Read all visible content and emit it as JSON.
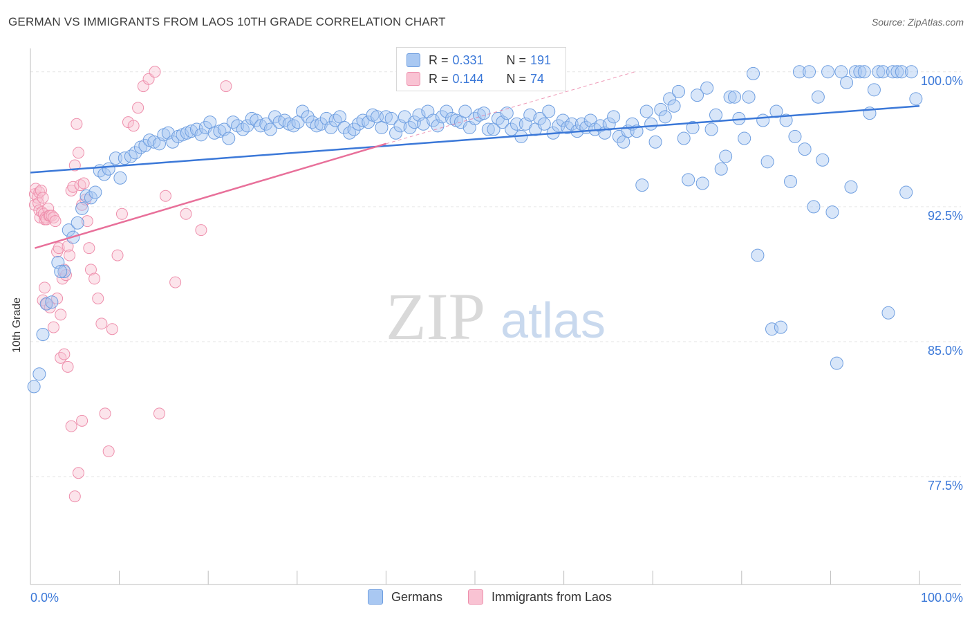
{
  "title": "GERMAN VS IMMIGRANTS FROM LAOS 10TH GRADE CORRELATION CHART",
  "source": "Source: ZipAtlas.com",
  "watermark": {
    "zip": "ZIP",
    "atlas": "atlas"
  },
  "legend": {
    "r_label": "R =",
    "n_label": "N =",
    "items": [
      {
        "name": "Germans",
        "r": "0.331",
        "n": "191",
        "fill": "#a9c8f2",
        "stroke": "#6e9ee0"
      },
      {
        "name": "Immigrants from Laos",
        "r": "0.144",
        "n": "74",
        "fill": "#f9c3d3",
        "stroke": "#ee8fac"
      }
    ]
  },
  "colors": {
    "blue": "#3b78d8",
    "pink": "#e8709a",
    "tick_text": "#3b78d8",
    "grid": "#e6e6e6"
  },
  "chart_data": {
    "type": "scatter",
    "title": "GERMAN VS IMMIGRANTS FROM LAOS 10TH GRADE CORRELATION CHART",
    "xlabel": "",
    "ylabel": "10th Grade",
    "xlim": [
      0,
      100
    ],
    "ylim": [
      71.5,
      101.3
    ],
    "x_tick_labels": [
      "0.0%",
      "100.0%"
    ],
    "y_ticks": [
      77.5,
      85.0,
      92.5,
      100.0
    ],
    "y_tick_labels": [
      "77.5%",
      "85.0%",
      "92.5%",
      "100.0%"
    ],
    "grid": true,
    "legend_position": "top-center",
    "series": [
      {
        "name": "Germans",
        "trend": {
          "x": [
            0,
            100
          ],
          "y": [
            94.4,
            98.1
          ]
        },
        "points": [
          [
            0.4,
            82.5
          ],
          [
            1.0,
            83.2
          ],
          [
            1.4,
            85.4
          ],
          [
            1.8,
            87.1
          ],
          [
            2.4,
            87.2
          ],
          [
            3.1,
            89.4
          ],
          [
            3.8,
            88.9
          ],
          [
            3.4,
            88.9
          ],
          [
            4.3,
            91.2
          ],
          [
            4.8,
            90.8
          ],
          [
            5.3,
            91.6
          ],
          [
            5.8,
            92.4
          ],
          [
            6.3,
            93.1
          ],
          [
            6.8,
            93.0
          ],
          [
            7.3,
            93.3
          ],
          [
            7.8,
            94.5
          ],
          [
            8.3,
            94.3
          ],
          [
            8.8,
            94.6
          ],
          [
            9.6,
            95.2
          ],
          [
            10.1,
            94.1
          ],
          [
            10.6,
            95.2
          ],
          [
            11.3,
            95.3
          ],
          [
            11.8,
            95.5
          ],
          [
            12.4,
            95.8
          ],
          [
            12.9,
            95.9
          ],
          [
            13.4,
            96.2
          ],
          [
            13.9,
            96.1
          ],
          [
            14.5,
            96.0
          ],
          [
            15.0,
            96.5
          ],
          [
            15.5,
            96.6
          ],
          [
            16.0,
            96.1
          ],
          [
            16.6,
            96.4
          ],
          [
            17.1,
            96.5
          ],
          [
            17.6,
            96.6
          ],
          [
            18.1,
            96.7
          ],
          [
            18.7,
            96.8
          ],
          [
            19.2,
            96.5
          ],
          [
            19.7,
            96.9
          ],
          [
            20.2,
            97.2
          ],
          [
            20.7,
            96.6
          ],
          [
            21.3,
            96.7
          ],
          [
            21.8,
            96.8
          ],
          [
            22.3,
            96.3
          ],
          [
            22.8,
            97.2
          ],
          [
            23.3,
            97.0
          ],
          [
            23.9,
            96.8
          ],
          [
            24.4,
            97.0
          ],
          [
            24.9,
            97.4
          ],
          [
            25.4,
            97.3
          ],
          [
            25.9,
            97.0
          ],
          [
            26.5,
            97.1
          ],
          [
            27.0,
            96.8
          ],
          [
            27.5,
            97.5
          ],
          [
            28.0,
            97.2
          ],
          [
            28.6,
            97.3
          ],
          [
            29.1,
            97.1
          ],
          [
            29.6,
            97.0
          ],
          [
            30.1,
            97.2
          ],
          [
            30.6,
            97.8
          ],
          [
            31.2,
            97.5
          ],
          [
            31.7,
            97.2
          ],
          [
            32.2,
            97.0
          ],
          [
            32.7,
            97.1
          ],
          [
            33.3,
            97.4
          ],
          [
            33.8,
            96.9
          ],
          [
            34.3,
            97.3
          ],
          [
            34.8,
            97.5
          ],
          [
            35.3,
            96.9
          ],
          [
            35.9,
            96.6
          ],
          [
            36.4,
            96.8
          ],
          [
            36.9,
            97.1
          ],
          [
            37.4,
            97.3
          ],
          [
            38.0,
            97.2
          ],
          [
            38.5,
            97.6
          ],
          [
            39.0,
            97.5
          ],
          [
            39.5,
            96.9
          ],
          [
            40.0,
            97.5
          ],
          [
            40.6,
            97.4
          ],
          [
            41.1,
            96.6
          ],
          [
            41.6,
            97.0
          ],
          [
            42.1,
            97.5
          ],
          [
            42.7,
            96.9
          ],
          [
            43.2,
            97.2
          ],
          [
            43.7,
            97.6
          ],
          [
            44.2,
            97.1
          ],
          [
            44.7,
            97.8
          ],
          [
            45.3,
            97.3
          ],
          [
            45.8,
            97.0
          ],
          [
            46.3,
            97.5
          ],
          [
            46.8,
            97.8
          ],
          [
            47.4,
            97.4
          ],
          [
            47.9,
            97.3
          ],
          [
            48.4,
            97.2
          ],
          [
            48.9,
            97.8
          ],
          [
            49.4,
            96.9
          ],
          [
            50.0,
            97.4
          ],
          [
            50.5,
            97.6
          ],
          [
            51.0,
            97.7
          ],
          [
            51.5,
            96.8
          ],
          [
            52.1,
            96.8
          ],
          [
            52.6,
            97.4
          ],
          [
            53.1,
            97.2
          ],
          [
            53.6,
            97.7
          ],
          [
            54.1,
            96.8
          ],
          [
            54.7,
            97.1
          ],
          [
            55.2,
            96.4
          ],
          [
            55.7,
            97.1
          ],
          [
            56.2,
            97.6
          ],
          [
            56.8,
            96.8
          ],
          [
            57.3,
            97.4
          ],
          [
            57.8,
            97.1
          ],
          [
            58.3,
            97.8
          ],
          [
            58.8,
            96.6
          ],
          [
            59.4,
            97.0
          ],
          [
            59.9,
            97.3
          ],
          [
            60.4,
            96.9
          ],
          [
            60.9,
            97.1
          ],
          [
            61.5,
            96.7
          ],
          [
            62.0,
            97.1
          ],
          [
            62.5,
            96.9
          ],
          [
            63.0,
            97.3
          ],
          [
            63.5,
            96.8
          ],
          [
            64.1,
            97.0
          ],
          [
            64.6,
            96.6
          ],
          [
            65.1,
            97.1
          ],
          [
            65.6,
            97.5
          ],
          [
            66.2,
            96.4
          ],
          [
            66.7,
            96.1
          ],
          [
            67.2,
            96.7
          ],
          [
            67.7,
            97.1
          ],
          [
            68.2,
            96.7
          ],
          [
            68.8,
            93.7
          ],
          [
            69.3,
            97.8
          ],
          [
            69.8,
            97.1
          ],
          [
            70.3,
            96.1
          ],
          [
            70.9,
            97.9
          ],
          [
            71.4,
            97.5
          ],
          [
            71.9,
            98.5
          ],
          [
            72.4,
            98.1
          ],
          [
            72.9,
            98.9
          ],
          [
            73.5,
            96.3
          ],
          [
            74.0,
            94.0
          ],
          [
            74.5,
            96.9
          ],
          [
            75.0,
            98.7
          ],
          [
            75.6,
            93.8
          ],
          [
            76.1,
            99.1
          ],
          [
            76.6,
            96.8
          ],
          [
            77.1,
            97.6
          ],
          [
            77.7,
            94.6
          ],
          [
            78.2,
            95.3
          ],
          [
            78.7,
            98.6
          ],
          [
            79.2,
            98.6
          ],
          [
            79.7,
            97.4
          ],
          [
            80.3,
            96.3
          ],
          [
            80.8,
            98.6
          ],
          [
            81.3,
            99.9
          ],
          [
            81.8,
            89.8
          ],
          [
            82.4,
            97.3
          ],
          [
            82.9,
            95.0
          ],
          [
            83.4,
            85.7
          ],
          [
            83.9,
            97.8
          ],
          [
            84.4,
            85.8
          ],
          [
            85.0,
            97.3
          ],
          [
            85.5,
            93.9
          ],
          [
            86.0,
            96.4
          ],
          [
            86.5,
            100.0
          ],
          [
            87.1,
            95.7
          ],
          [
            87.6,
            100.0
          ],
          [
            88.1,
            92.5
          ],
          [
            88.6,
            98.6
          ],
          [
            89.1,
            95.1
          ],
          [
            89.7,
            100.0
          ],
          [
            90.2,
            92.2
          ],
          [
            90.7,
            83.8
          ],
          [
            91.2,
            100.0
          ],
          [
            91.8,
            99.4
          ],
          [
            92.3,
            93.6
          ],
          [
            92.8,
            100.0
          ],
          [
            93.3,
            100.0
          ],
          [
            93.8,
            100.0
          ],
          [
            94.4,
            97.7
          ],
          [
            94.9,
            99.0
          ],
          [
            95.4,
            100.0
          ],
          [
            95.9,
            100.0
          ],
          [
            96.5,
            86.6
          ],
          [
            97.0,
            100.0
          ],
          [
            97.5,
            100.0
          ],
          [
            98.0,
            100.0
          ],
          [
            98.5,
            93.3
          ],
          [
            99.1,
            100.0
          ],
          [
            99.6,
            98.5
          ]
        ]
      },
      {
        "name": "Immigrants from Laos",
        "trend": {
          "x": [
            0.5,
            40
          ],
          "y": [
            90.2,
            96.0
          ]
        },
        "trend_dashed": {
          "x": [
            40,
            68
          ],
          "y": [
            96.0,
            100.0
          ]
        },
        "points": [
          [
            0.5,
            92.6
          ],
          [
            0.5,
            93.2
          ],
          [
            0.6,
            93.5
          ],
          [
            0.8,
            93.0
          ],
          [
            0.9,
            92.7
          ],
          [
            1.0,
            92.3
          ],
          [
            1.0,
            93.3
          ],
          [
            1.1,
            91.9
          ],
          [
            1.2,
            93.4
          ],
          [
            1.3,
            92.2
          ],
          [
            1.4,
            93.0
          ],
          [
            1.5,
            92.1
          ],
          [
            1.6,
            91.8
          ],
          [
            1.7,
            91.9
          ],
          [
            1.8,
            91.8
          ],
          [
            2.0,
            92.4
          ],
          [
            2.1,
            92.0
          ],
          [
            2.2,
            92.0
          ],
          [
            2.4,
            92.0
          ],
          [
            2.6,
            91.9
          ],
          [
            2.8,
            91.7
          ],
          [
            3.0,
            90.0
          ],
          [
            3.2,
            90.2
          ],
          [
            3.4,
            86.5
          ],
          [
            3.6,
            88.5
          ],
          [
            3.8,
            89.0
          ],
          [
            4.0,
            88.7
          ],
          [
            4.2,
            90.3
          ],
          [
            4.4,
            89.8
          ],
          [
            4.6,
            93.4
          ],
          [
            4.8,
            93.6
          ],
          [
            5.0,
            94.8
          ],
          [
            5.2,
            97.1
          ],
          [
            5.4,
            95.5
          ],
          [
            5.6,
            93.7
          ],
          [
            5.8,
            92.6
          ],
          [
            6.0,
            93.8
          ],
          [
            6.2,
            92.9
          ],
          [
            6.4,
            91.7
          ],
          [
            6.6,
            90.2
          ],
          [
            1.4,
            87.3
          ],
          [
            1.6,
            88.0
          ],
          [
            1.8,
            87.1
          ],
          [
            2.2,
            86.9
          ],
          [
            2.6,
            85.8
          ],
          [
            3.0,
            87.4
          ],
          [
            3.4,
            84.1
          ],
          [
            3.8,
            84.3
          ],
          [
            4.2,
            83.6
          ],
          [
            4.6,
            80.3
          ],
          [
            5.0,
            76.4
          ],
          [
            5.4,
            77.7
          ],
          [
            5.8,
            80.6
          ],
          [
            6.8,
            89.0
          ],
          [
            7.2,
            88.5
          ],
          [
            7.6,
            87.4
          ],
          [
            8.0,
            86.0
          ],
          [
            8.4,
            81.0
          ],
          [
            8.8,
            78.9
          ],
          [
            9.2,
            85.7
          ],
          [
            9.8,
            89.8
          ],
          [
            10.3,
            92.1
          ],
          [
            11.0,
            97.2
          ],
          [
            11.6,
            97.0
          ],
          [
            12.1,
            98.0
          ],
          [
            12.7,
            99.2
          ],
          [
            13.3,
            99.6
          ],
          [
            14.0,
            100.0
          ],
          [
            14.5,
            81.0
          ],
          [
            15.2,
            93.1
          ],
          [
            16.3,
            88.3
          ],
          [
            17.5,
            92.1
          ],
          [
            19.2,
            91.2
          ],
          [
            22.0,
            99.2
          ]
        ]
      }
    ]
  }
}
